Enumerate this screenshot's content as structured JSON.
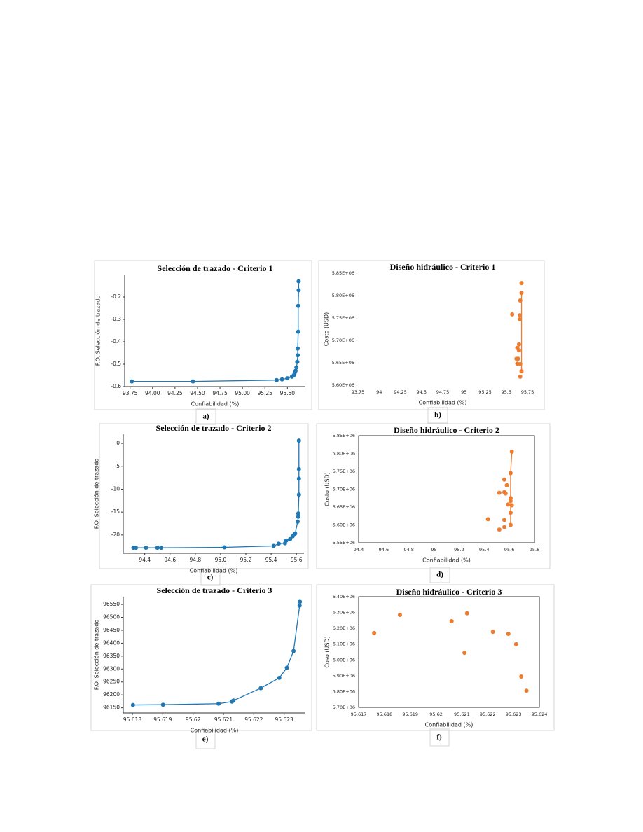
{
  "chart_data": [
    {
      "type": "line",
      "title": "Selección de trazado - Criterio 1",
      "xlabel": "Confiabilidad (%)",
      "ylabel": "F.O. Selección de trazado",
      "caption": "a)",
      "frame": "axes",
      "xlim": [
        93.69,
        95.7
      ],
      "ylim": [
        -0.6,
        -0.1
      ],
      "xticks": [
        93.75,
        {
          "value": 94,
          "label": "94.00"
        },
        94.25,
        {
          "value": 94.5,
          "label": "94.50"
        },
        94.75,
        {
          "value": 95,
          "label": "95.00"
        },
        95.25,
        {
          "value": 95.5,
          "label": "95.50"
        }
      ],
      "yticks": [
        -0.6,
        -0.5,
        -0.4,
        -0.3,
        -0.2
      ],
      "series": [
        {
          "color": "#1f77b4",
          "mode": "lines+markers",
          "x": [
            93.77,
            94.45,
            95.38,
            95.44,
            95.5,
            95.55,
            95.57,
            95.58,
            95.59,
            95.6,
            95.61,
            95.615,
            95.615,
            95.62,
            95.62,
            95.625,
            95.625
          ],
          "values": [
            -0.577,
            -0.577,
            -0.571,
            -0.568,
            -0.563,
            -0.556,
            -0.55,
            -0.54,
            -0.53,
            -0.515,
            -0.49,
            -0.46,
            -0.43,
            -0.355,
            -0.24,
            -0.17,
            -0.13
          ]
        }
      ]
    },
    {
      "type": "scatter",
      "title": "Diseño hidráulico - Criterio 1",
      "xlabel": "Confiabilidad (%)",
      "ylabel": "Costo (USD)",
      "caption": "b)",
      "frame": "none",
      "xlim": [
        93.75,
        95.75
      ],
      "ylim": [
        5600000,
        5850000
      ],
      "xticks": [
        93.75,
        94,
        94.25,
        94.5,
        94.75,
        95,
        95.25,
        95.5,
        95.75
      ],
      "yticks": [
        {
          "value": 5600000,
          "label": "5.60E+06"
        },
        {
          "value": 5650000,
          "label": "5.65E+06"
        },
        {
          "value": 5700000,
          "label": "5.70E+06"
        },
        {
          "value": 5750000,
          "label": "5.75E+06"
        },
        {
          "value": 5800000,
          "label": "5.80E+06"
        },
        {
          "value": 5850000,
          "label": "5.85E+06"
        }
      ],
      "series": [
        {
          "color": "#ed7d31",
          "mode": "markers",
          "x": [
            95.68,
            95.68,
            95.665,
            95.57,
            95.66,
            95.66,
            95.65,
            95.63,
            95.65,
            95.62,
            95.64,
            95.63,
            95.665,
            95.68,
            95.665
          ],
          "values": [
            5828000,
            5806000,
            5789000,
            5758000,
            5756000,
            5747000,
            5691000,
            5683000,
            5678000,
            5659000,
            5659000,
            5648000,
            5647000,
            5631000,
            5619000
          ]
        },
        {
          "color": "#ed7d31",
          "mode": "lines",
          "x": [
            95.68,
            95.68
          ],
          "values": [
            5806000,
            5631000
          ]
        }
      ]
    },
    {
      "type": "line",
      "title": "Selección de trazado - Criterio 2",
      "xlabel": "Confiabilidad (%)",
      "ylabel": "F.O. Selección de trazado",
      "caption": "c)",
      "frame": "axes",
      "xlim": [
        94.23,
        95.66
      ],
      "ylim": [
        -24,
        2
      ],
      "xticks": [
        94.4,
        94.6,
        94.8,
        {
          "value": 95,
          "label": "95.0"
        },
        95.2,
        95.4,
        95.6
      ],
      "yticks": [
        -20,
        -15,
        -10,
        -5,
        0
      ],
      "series": [
        {
          "color": "#1f77b4",
          "mode": "lines+markers",
          "x": [
            94.31,
            94.33,
            94.41,
            94.5,
            94.53,
            95.03,
            95.42,
            95.46,
            95.51,
            95.52,
            95.55,
            95.57,
            95.58,
            95.59,
            95.61,
            95.615,
            95.615,
            95.62,
            95.62,
            95.62,
            95.62
          ],
          "values": [
            -22.8,
            -22.8,
            -22.8,
            -22.8,
            -22.8,
            -22.7,
            -22.4,
            -21.9,
            -21.8,
            -21.2,
            -20.9,
            -20.3,
            -20.0,
            -19.7,
            -17.1,
            -16.0,
            -15.3,
            -11.2,
            -7.7,
            -5.6,
            0.6
          ]
        }
      ]
    },
    {
      "type": "scatter",
      "title": "Diseño hidráulico - Criterio 2",
      "xlabel": "Confiabilidad (%)",
      "ylabel": "Costo (USD)",
      "caption": "d)",
      "frame": "box",
      "xlim": [
        94.4,
        95.8
      ],
      "ylim": [
        5550000,
        5850000
      ],
      "xticks": [
        94.4,
        94.6,
        94.8,
        95,
        95.2,
        95.4,
        95.6,
        95.8
      ],
      "yticks": [
        {
          "value": 5550000,
          "label": "5.55E+06"
        },
        {
          "value": 5600000,
          "label": "5.60E+06"
        },
        {
          "value": 5650000,
          "label": "5.65E+06"
        },
        {
          "value": 5700000,
          "label": "5.70E+06"
        },
        {
          "value": 5750000,
          "label": "5.75E+06"
        },
        {
          "value": 5800000,
          "label": "5.80E+06"
        },
        {
          "value": 5850000,
          "label": "5.85E+06"
        }
      ],
      "series": [
        {
          "color": "#ed7d31",
          "mode": "markers",
          "x": [
            95.62,
            95.61,
            95.56,
            95.58,
            95.56,
            95.52,
            95.57,
            95.61,
            95.61,
            95.59,
            95.62,
            95.61,
            95.43,
            95.56,
            95.61,
            95.56,
            95.52
          ],
          "values": [
            5805000,
            5745000,
            5727000,
            5711000,
            5692000,
            5690000,
            5688000,
            5675000,
            5667000,
            5657000,
            5655000,
            5634000,
            5616000,
            5614000,
            5600000,
            5594000,
            5587000
          ]
        },
        {
          "color": "#ed7d31",
          "mode": "lines",
          "x": [
            95.62,
            95.61,
            95.61,
            95.61,
            95.61
          ],
          "values": [
            5805000,
            5745000,
            5675000,
            5634000,
            5600000
          ]
        }
      ]
    },
    {
      "type": "line",
      "title": "Selección de trazado - Criterio 3",
      "xlabel": "Confiabilidad (%)",
      "ylabel": "F.O. Selección de trazado",
      "caption": "e)",
      "frame": "axes",
      "xlim": [
        95.6177,
        95.6237
      ],
      "ylim": [
        96130,
        96580
      ],
      "xticks": [
        95.618,
        95.619,
        95.62,
        95.621,
        95.622,
        95.623
      ],
      "yticks": [
        96150,
        96200,
        96250,
        96300,
        96350,
        96400,
        96450,
        96500,
        96550
      ],
      "series": [
        {
          "color": "#1f77b4",
          "mode": "lines+markers",
          "x": [
            95.61802,
            95.61901,
            95.62084,
            95.62128,
            95.62133,
            95.62223,
            95.62284,
            95.62309,
            95.62331,
            95.62351,
            95.62352
          ],
          "values": [
            96161,
            96162,
            96166,
            96174,
            96178,
            96226,
            96266,
            96305,
            96370,
            96545,
            96560
          ]
        }
      ]
    },
    {
      "type": "scatter",
      "title": "Diseño hidráulico - Criterio 3",
      "xlabel": "Confiabilidad (%)",
      "ylabel": "Coso (USD)",
      "caption": "f)",
      "frame": "box",
      "xlim": [
        95.617,
        95.624
      ],
      "ylim": [
        5700000,
        6400000
      ],
      "xticks": [
        95.617,
        95.618,
        95.619,
        95.62,
        95.621,
        95.622,
        95.623,
        95.624
      ],
      "yticks": [
        {
          "value": 5700000,
          "label": "5.70E+06"
        },
        {
          "value": 5800000,
          "label": "5.80E+06"
        },
        {
          "value": 5900000,
          "label": "5.90E+06"
        },
        {
          "value": 6000000,
          "label": "6.00E+06"
        },
        {
          "value": 6100000,
          "label": "6.10E+06"
        },
        {
          "value": 6200000,
          "label": "6.20E+06"
        },
        {
          "value": 6300000,
          "label": "6.30E+06"
        },
        {
          "value": 6400000,
          "label": "6.40E+06"
        }
      ],
      "series": [
        {
          "color": "#ed7d31",
          "mode": "markers",
          "x": [
            95.6176,
            95.6186,
            95.6206,
            95.6212,
            95.6211,
            95.6222,
            95.6228,
            95.6231,
            95.6233,
            95.6235
          ],
          "values": [
            6170000,
            6285000,
            6245000,
            6295000,
            6045000,
            6178000,
            6165000,
            6100000,
            5895000,
            5805000
          ]
        }
      ]
    }
  ]
}
